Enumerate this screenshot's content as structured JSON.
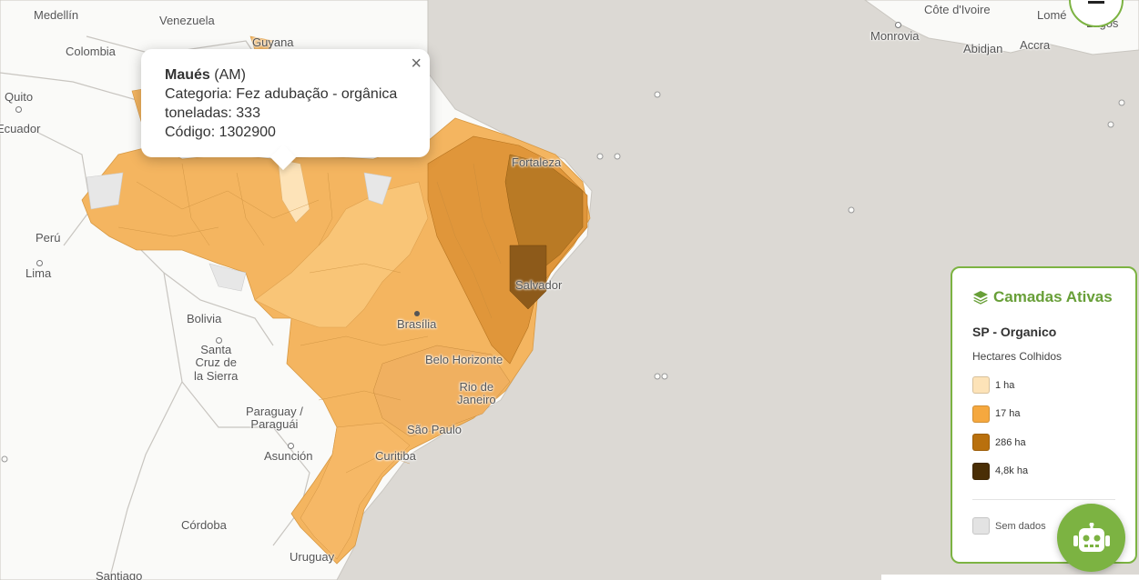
{
  "map": {
    "places": [
      {
        "id": "medellin",
        "text": "Medellín"
      },
      {
        "id": "venezuela",
        "text": "Venezuela"
      },
      {
        "id": "colombia",
        "text": "Colombia"
      },
      {
        "id": "guyana",
        "text": "Guyana"
      },
      {
        "id": "quito",
        "text": "Quito"
      },
      {
        "id": "ecuador",
        "text": "Ecuador"
      },
      {
        "id": "peru",
        "text": "Perú"
      },
      {
        "id": "lima",
        "text": "Lima"
      },
      {
        "id": "bolivia",
        "text": "Bolivia"
      },
      {
        "id": "santa_cruz",
        "text": "Santa\nCruz de\nla Sierra"
      },
      {
        "id": "paraguay",
        "text": "Paraguay /\nParaguái"
      },
      {
        "id": "asuncion",
        "text": "Asunción"
      },
      {
        "id": "cordoba",
        "text": "Córdoba"
      },
      {
        "id": "uruguay",
        "text": "Uruguay"
      },
      {
        "id": "santiago",
        "text": "Santiago"
      },
      {
        "id": "fortaleza",
        "text": "Fortaleza"
      },
      {
        "id": "salvador",
        "text": "Salvador"
      },
      {
        "id": "brasilia",
        "text": "Brasília"
      },
      {
        "id": "belo_horizonte",
        "text": "Belo Horizonte"
      },
      {
        "id": "rio",
        "text": "Rio de\nJaneiro"
      },
      {
        "id": "sao_paulo",
        "text": "São Paulo"
      },
      {
        "id": "curitiba",
        "text": "Curitiba"
      },
      {
        "id": "cote_divoire",
        "text": "Côte d'Ivoire"
      },
      {
        "id": "monrovia",
        "text": "Monrovia"
      },
      {
        "id": "abidjan",
        "text": "Abidjan"
      },
      {
        "id": "accra",
        "text": "Accra"
      },
      {
        "id": "lome",
        "text": "Lomé"
      },
      {
        "id": "lagos",
        "text": "Lagos"
      }
    ]
  },
  "popup": {
    "name": "Maués",
    "state": " (AM)",
    "category": "Categoria: Fez adubação - orgânica",
    "tons": "toneladas: 333",
    "code": "Código: 1302900",
    "close": "×"
  },
  "legend": {
    "title": "Camadas Ativas",
    "layer": "SP - Organico",
    "subtitle": "Hectares Colhidos",
    "items": [
      {
        "label": "1 ha",
        "color": "#fde3b8"
      },
      {
        "label": "17 ha",
        "color": "#f5a83f"
      },
      {
        "label": "286 ha",
        "color": "#b9700d"
      },
      {
        "label": "4,8k ha",
        "color": "#4a2e05"
      }
    ],
    "nodata": "Sem dados",
    "accent": "#7cb342"
  }
}
